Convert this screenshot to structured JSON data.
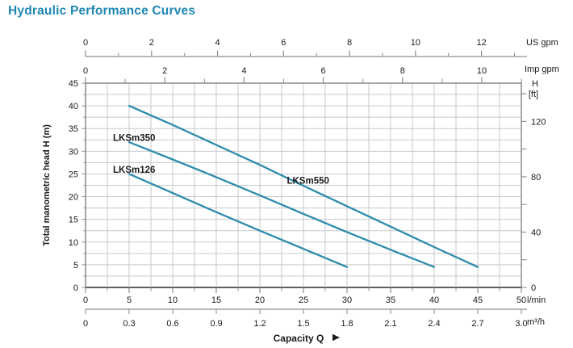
{
  "colors": {
    "title": "#1e87b4",
    "curve": "#2e8cab",
    "grid": "#c6c9cb",
    "plot_border": "#74787b",
    "plot_border_bottom": "#5d6163",
    "axis_line": "#8b8f92",
    "text": "#1a1a1a"
  },
  "chart_data": {
    "type": "line",
    "title": "Hydraulic Performance Curves",
    "xlabel": "Capacity Q",
    "x_range_lpm": [
      0,
      50
    ],
    "y_range_m": [
      0,
      45
    ],
    "grid_step_lpm": 2.5,
    "grid_step_m": 2.5,
    "grid": "on",
    "x_axes": [
      {
        "id": "us_gpm",
        "unit": "US gpm",
        "major_ticks": [
          0,
          2,
          4,
          6,
          8,
          10,
          12
        ],
        "minor_ticks": [
          1,
          3,
          5,
          7,
          9,
          11,
          13
        ],
        "lpm_per_unit": 3.7854,
        "position": "top-detached"
      },
      {
        "id": "imp_gpm",
        "unit": "Imp gpm",
        "major_ticks": [
          0,
          2,
          4,
          6,
          8,
          10
        ],
        "minor_ticks": [
          1,
          3,
          5,
          7,
          9,
          11
        ],
        "lpm_per_unit": 4.5461,
        "position": "top-attached"
      },
      {
        "id": "lpm",
        "unit": "l/min",
        "major_ticks": [
          0,
          5,
          10,
          15,
          20,
          25,
          30,
          35,
          40,
          45,
          50
        ],
        "minor_step": 2.5,
        "lpm_per_unit": 1,
        "position": "bottom-attached"
      },
      {
        "id": "m3h",
        "unit": "m³/h",
        "major_ticks": [
          "0",
          "0.3",
          "0.6",
          "0.9",
          "1.2",
          "1.5",
          "1.8",
          "2.1",
          "2.4",
          "2.7",
          "3.0"
        ],
        "lpm_per_unit": 16.6667,
        "position": "bottom-detached"
      }
    ],
    "y_axes": [
      {
        "id": "head_m",
        "label": "Total manometric head H (m)",
        "major_ticks": [
          0,
          5,
          10,
          15,
          20,
          25,
          30,
          35,
          40,
          45
        ],
        "minor_step": 2.5,
        "side": "left"
      },
      {
        "id": "head_ft",
        "label_line1": "H",
        "label_line2": "[ft]",
        "major_ticks": [
          0,
          40,
          80,
          120
        ],
        "minor_step": 20,
        "max_tick": 140,
        "m_per_unit": 0.3048,
        "side": "right"
      }
    ],
    "series": [
      {
        "name": "LKSm126",
        "points_lpm_m": [
          [
            5,
            25
          ],
          [
            10,
            20.8
          ],
          [
            15,
            16.6
          ],
          [
            20,
            12.5
          ],
          [
            25,
            8.5
          ],
          [
            30,
            4.5
          ]
        ],
        "label_anchor_lpm_m": [
          3.15,
          25.3
        ]
      },
      {
        "name": "LKSm350",
        "points_lpm_m": [
          [
            5,
            32
          ],
          [
            10,
            28.2
          ],
          [
            15,
            24.3
          ],
          [
            20,
            20.3
          ],
          [
            25,
            16.2
          ],
          [
            30,
            12.2
          ],
          [
            35,
            8.3
          ],
          [
            40,
            4.5
          ]
        ],
        "label_anchor_lpm_m": [
          3.15,
          32.3
        ]
      },
      {
        "name": "LKSm550",
        "points_lpm_m": [
          [
            5,
            40
          ],
          [
            10,
            35.8
          ],
          [
            15,
            31.4
          ],
          [
            20,
            27
          ],
          [
            25,
            22.4
          ],
          [
            30,
            17.9
          ],
          [
            35,
            13.4
          ],
          [
            40,
            8.9
          ],
          [
            45,
            4.5
          ]
        ],
        "label_anchor_lpm_m": [
          23.1,
          22.9
        ]
      }
    ]
  }
}
